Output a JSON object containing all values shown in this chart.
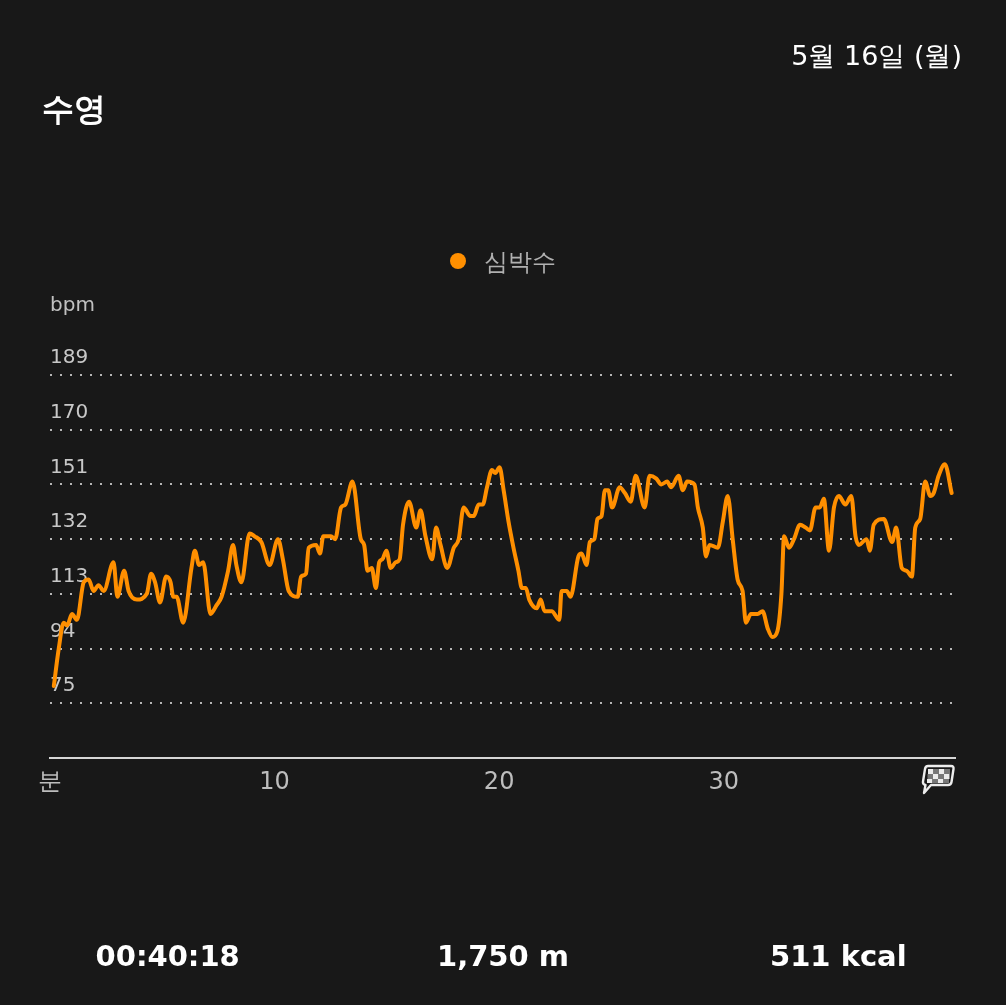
{
  "chart_data": {
    "type": "line",
    "title": "수영",
    "subtitle": "5월 16일 (월)",
    "ylabel": "bpm",
    "x": [
      0.17,
      0.39,
      0.61,
      0.76,
      0.98,
      1.2,
      1.5,
      1.72,
      1.94,
      2.16,
      2.39,
      2.83,
      3.0,
      3.3,
      3.5,
      3.87,
      4.31,
      4.5,
      4.68,
      4.9,
      5.17,
      5.37,
      5.49,
      5.64,
      5.93,
      6.3,
      6.45,
      6.64,
      6.82,
      7.15,
      7.41,
      7.64,
      7.93,
      8.15,
      8.3,
      8.52,
      8.89,
      9.11,
      9.41,
      9.78,
      10.15,
      10.37,
      10.63,
      11.03,
      11.18,
      11.4,
      11.52,
      11.85,
      12.02,
      12.17,
      12.51,
      12.7,
      12.96,
      13.15,
      13.47,
      13.84,
      13.99,
      14.14,
      14.33,
      14.51,
      14.66,
      14.8,
      14.98,
      15.17,
      15.4,
      15.57,
      15.72,
      15.99,
      16.31,
      16.5,
      16.72,
      17.02,
      17.19,
      17.39,
      17.69,
      17.98,
      18.2,
      18.42,
      18.72,
      18.87,
      19.09,
      19.27,
      19.46,
      19.68,
      19.83,
      20.02,
      20.2,
      20.42,
      20.64,
      20.86,
      21.01,
      21.19,
      21.34,
      21.68,
      21.85,
      22.02,
      22.34,
      22.68,
      22.78,
      23.01,
      23.18,
      23.53,
      23.67,
      23.89,
      24.04,
      24.24,
      24.38,
      24.56,
      24.71,
      24.86,
      25.03,
      25.37,
      25.6,
      25.86,
      26.08,
      26.48,
      26.7,
      27.0,
      27.22,
      27.48,
      27.66,
      27.99,
      28.18,
      28.37,
      28.7,
      28.85,
      29.07,
      29.21,
      29.37,
      29.74,
      29.96,
      30.18,
      30.4,
      30.62,
      30.84,
      30.99,
      31.21,
      31.51,
      31.73,
      31.96,
      32.17,
      32.39,
      32.57,
      32.69,
      32.91,
      33.13,
      33.4,
      33.65,
      33.84,
      34.09,
      34.28,
      34.46,
      34.69,
      34.91,
      35.13,
      35.42,
      35.68,
      35.87,
      36.02,
      36.36,
      36.51,
      36.68,
      37.13,
      37.5,
      37.68,
      37.93,
      38.15,
      38.38,
      38.53,
      38.75,
      38.97,
      39.2,
      39.35,
      39.57,
      39.85,
      40.15
    ],
    "series": [
      {
        "name": "심박수",
        "color": "#ff8f00",
        "values": [
          81,
          94,
          103,
          102,
          106,
          104,
          117,
          118,
          114,
          116,
          114,
          124,
          112,
          121,
          114,
          111,
          113,
          120,
          117,
          110,
          119,
          117,
          112,
          112,
          103,
          122,
          128,
          123,
          124,
          106,
          109,
          112,
          121,
          130,
          123,
          117,
          134,
          133,
          131,
          123,
          132,
          125,
          114,
          112,
          119,
          120,
          129,
          130,
          127,
          133,
          133,
          132,
          143,
          144,
          152,
          132,
          130,
          121,
          122,
          115,
          124,
          125,
          128,
          122,
          124,
          125,
          137,
          145,
          136,
          142,
          133,
          125,
          136,
          130,
          122,
          129,
          132,
          143,
          140,
          140,
          144,
          144,
          150,
          156,
          155,
          157,
          149,
          138,
          129,
          121,
          115,
          115,
          111,
          108,
          111,
          107,
          107,
          104,
          114,
          114,
          112,
          126,
          127,
          123,
          131,
          132,
          139,
          140,
          149,
          149,
          143,
          150,
          148,
          145,
          154,
          143,
          154,
          153,
          151,
          152,
          150,
          154,
          149,
          152,
          151,
          143,
          136,
          126,
          130,
          129,
          138,
          147,
          132,
          118,
          114,
          103,
          106,
          106,
          107,
          101,
          98,
          100,
          113,
          133,
          129,
          132,
          137,
          136,
          135,
          143,
          143,
          146,
          128,
          143,
          147,
          144,
          147,
          133,
          130,
          132,
          128,
          137,
          139,
          131,
          136,
          122,
          121,
          119,
          136,
          139,
          152,
          147,
          148,
          154,
          158,
          148
        ]
      }
    ],
    "xlim": [
      0,
      40.3
    ],
    "xticks": [
      {
        "value": 0,
        "label": "분"
      },
      10,
      20,
      30
    ],
    "ylim": [
      56,
      189
    ],
    "yticks": [
      75,
      94,
      113,
      132,
      151,
      170,
      189
    ],
    "grid": "y",
    "legend": "top",
    "marker": "none",
    "line_style": "solid",
    "annotations": [
      "00:40:18",
      "1,750 m",
      "511 kcal"
    ]
  }
}
